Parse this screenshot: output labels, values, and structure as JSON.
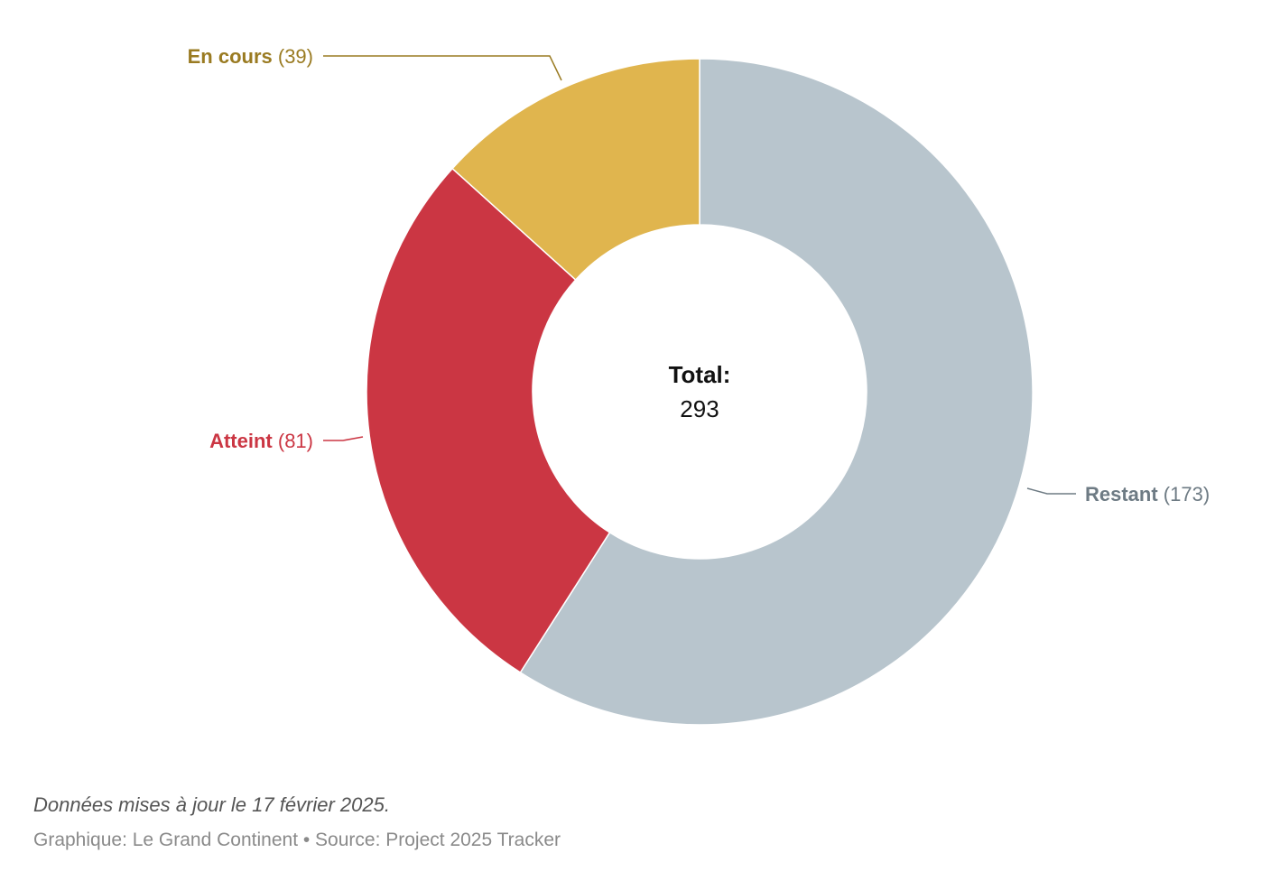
{
  "chart_data": {
    "type": "pie",
    "variant": "donut",
    "start": "top",
    "direction": "clockwise",
    "categories": [
      "Restant",
      "Atteint",
      "En cours"
    ],
    "values": [
      173,
      81,
      39
    ],
    "colors": [
      "#b8c5cd",
      "#cb3643",
      "#e0b54e"
    ],
    "label_colors": [
      "#6e7b84",
      "#cb3643",
      "#9a7b22"
    ],
    "center": {
      "title": "Total:",
      "value": "293"
    }
  },
  "footer": {
    "note": "Données mises à jour le 17 février 2025.",
    "credit": "Graphique: Le Grand Continent • Source: Project 2025 Tracker"
  }
}
